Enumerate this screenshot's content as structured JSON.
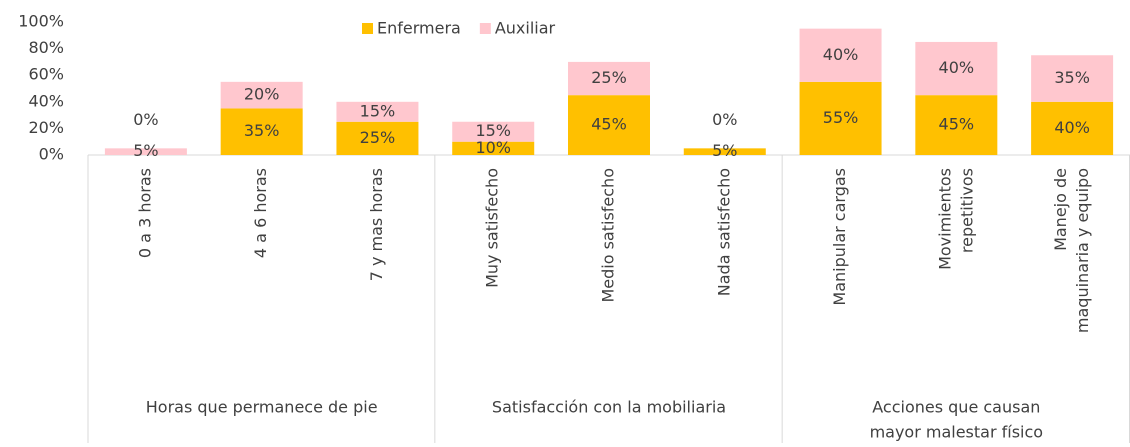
{
  "chart_data": {
    "type": "bar",
    "stacked": true,
    "categories": [
      "0 a 3 horas",
      "4 a 6 horas",
      "7 y mas horas",
      "Muy satisfecho",
      "Medio satisfecho",
      "Nada satisfecho",
      "Manipular cargas",
      "Movimientos repetitivos",
      "Manejo de maquinaria y equipo"
    ],
    "groups": [
      {
        "name": "Horas que permanece de pie",
        "count": 3
      },
      {
        "name": "Satisfacción con la mobiliaria",
        "count": 3
      },
      {
        "name": "Acciones que causan mayor malestar físico",
        "count": 3
      }
    ],
    "series": [
      {
        "name": "Enfermera",
        "color": "#ffc000",
        "values": [
          0,
          35,
          25,
          10,
          45,
          5,
          55,
          45,
          40
        ],
        "value_labels": [
          "0%",
          "35%",
          "25%",
          "10%",
          "45%",
          "5%",
          "55%",
          "45%",
          "40%"
        ]
      },
      {
        "name": "Auxiliar",
        "color": "#ffc7ce",
        "values": [
          5,
          20,
          15,
          15,
          25,
          0,
          40,
          40,
          35
        ],
        "value_labels": [
          "5%",
          "20%",
          "15%",
          "15%",
          "25%",
          "0%",
          "40%",
          "40%",
          "35%"
        ]
      }
    ],
    "ylim": [
      0,
      100
    ],
    "yticks": [
      {
        "value": 0,
        "label": "0%"
      },
      {
        "value": 20,
        "label": "20%"
      },
      {
        "value": 40,
        "label": "40%"
      },
      {
        "value": 60,
        "label": "60%"
      },
      {
        "value": 80,
        "label": "80%"
      },
      {
        "value": 100,
        "label": "100%"
      }
    ],
    "legend": "top"
  }
}
